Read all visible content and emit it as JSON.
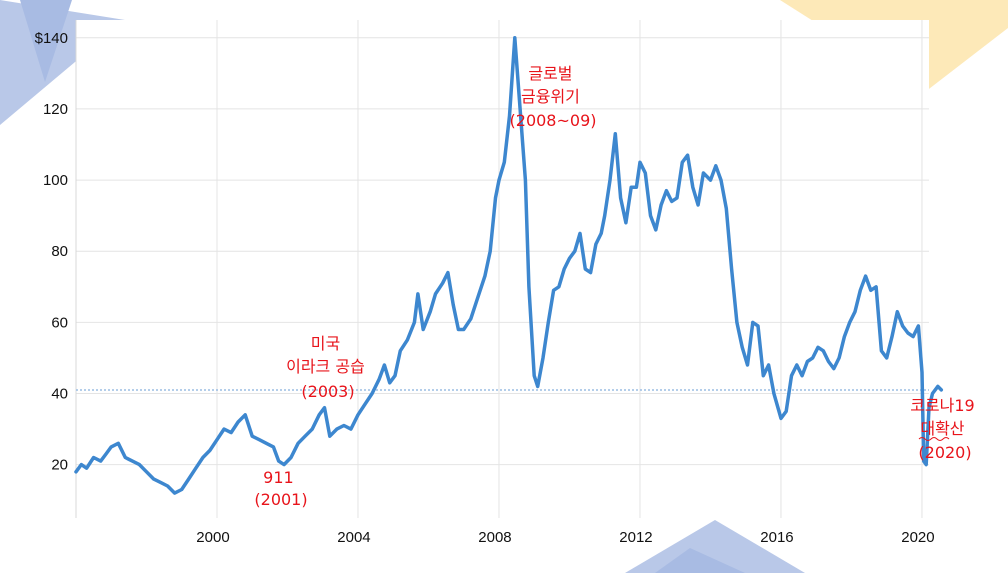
{
  "colors": {
    "line": "#3d87cf",
    "grid": "#e4e4e4",
    "reference_line": "#9bbde4",
    "annotation": "#e8141b",
    "decor_blue": "#b9c8e8",
    "decor_yellow": "#fde9b8"
  },
  "chart_data": {
    "type": "line",
    "title": "",
    "xlabel": "",
    "ylabel": "",
    "xlim": [
      1996.0,
      2020.2
    ],
    "ylim": [
      5,
      145
    ],
    "y_tick_labels": [
      "$140",
      "120",
      "100",
      "80",
      "60",
      "40",
      "20"
    ],
    "y_ticks": [
      140,
      120,
      100,
      80,
      60,
      40,
      20
    ],
    "x_tick_labels": [
      "2000",
      "2004",
      "2008",
      "2012",
      "2016",
      "2020"
    ],
    "x_ticks": [
      2000,
      2004,
      2008,
      2012,
      2016,
      2020
    ],
    "grid": true,
    "reference_line_y": 41,
    "series": [
      {
        "name": "",
        "points": [
          [
            1996.0,
            18
          ],
          [
            1996.15,
            20
          ],
          [
            1996.3,
            19
          ],
          [
            1996.5,
            22
          ],
          [
            1996.7,
            21
          ],
          [
            1996.85,
            23
          ],
          [
            1997.0,
            25
          ],
          [
            1997.2,
            26
          ],
          [
            1997.4,
            22
          ],
          [
            1997.6,
            21
          ],
          [
            1997.8,
            20
          ],
          [
            1998.0,
            18
          ],
          [
            1998.2,
            16
          ],
          [
            1998.4,
            15
          ],
          [
            1998.6,
            14
          ],
          [
            1998.8,
            12
          ],
          [
            1999.0,
            13
          ],
          [
            1999.2,
            16
          ],
          [
            1999.4,
            19
          ],
          [
            1999.6,
            22
          ],
          [
            1999.8,
            24
          ],
          [
            2000.0,
            27
          ],
          [
            2000.2,
            30
          ],
          [
            2000.4,
            29
          ],
          [
            2000.6,
            32
          ],
          [
            2000.8,
            34
          ],
          [
            2001.0,
            28
          ],
          [
            2001.2,
            27
          ],
          [
            2001.4,
            26
          ],
          [
            2001.6,
            25
          ],
          [
            2001.75,
            21
          ],
          [
            2001.9,
            20
          ],
          [
            2002.1,
            22
          ],
          [
            2002.3,
            26
          ],
          [
            2002.5,
            28
          ],
          [
            2002.7,
            30
          ],
          [
            2002.9,
            34
          ],
          [
            2003.05,
            36
          ],
          [
            2003.2,
            28
          ],
          [
            2003.4,
            30
          ],
          [
            2003.6,
            31
          ],
          [
            2003.8,
            30
          ],
          [
            2004.0,
            34
          ],
          [
            2004.2,
            37
          ],
          [
            2004.4,
            40
          ],
          [
            2004.6,
            44
          ],
          [
            2004.75,
            48
          ],
          [
            2004.9,
            43
          ],
          [
            2005.05,
            45
          ],
          [
            2005.2,
            52
          ],
          [
            2005.4,
            55
          ],
          [
            2005.6,
            60
          ],
          [
            2005.7,
            68
          ],
          [
            2005.85,
            58
          ],
          [
            2006.05,
            63
          ],
          [
            2006.2,
            68
          ],
          [
            2006.4,
            71
          ],
          [
            2006.55,
            74
          ],
          [
            2006.7,
            65
          ],
          [
            2006.85,
            58
          ],
          [
            2007.0,
            58
          ],
          [
            2007.2,
            61
          ],
          [
            2007.4,
            67
          ],
          [
            2007.6,
            73
          ],
          [
            2007.75,
            80
          ],
          [
            2007.9,
            95
          ],
          [
            2008.0,
            100
          ],
          [
            2008.15,
            105
          ],
          [
            2008.3,
            118
          ],
          [
            2008.45,
            140
          ],
          [
            2008.6,
            120
          ],
          [
            2008.75,
            100
          ],
          [
            2008.85,
            70
          ],
          [
            2009.0,
            45
          ],
          [
            2009.1,
            42
          ],
          [
            2009.25,
            50
          ],
          [
            2009.4,
            60
          ],
          [
            2009.55,
            69
          ],
          [
            2009.7,
            70
          ],
          [
            2009.85,
            75
          ],
          [
            2010.0,
            78
          ],
          [
            2010.15,
            80
          ],
          [
            2010.3,
            85
          ],
          [
            2010.45,
            75
          ],
          [
            2010.6,
            74
          ],
          [
            2010.75,
            82
          ],
          [
            2010.9,
            85
          ],
          [
            2011.0,
            90
          ],
          [
            2011.15,
            100
          ],
          [
            2011.3,
            113
          ],
          [
            2011.45,
            95
          ],
          [
            2011.6,
            88
          ],
          [
            2011.75,
            98
          ],
          [
            2011.9,
            98
          ],
          [
            2012.0,
            105
          ],
          [
            2012.15,
            102
          ],
          [
            2012.3,
            90
          ],
          [
            2012.45,
            86
          ],
          [
            2012.6,
            93
          ],
          [
            2012.75,
            97
          ],
          [
            2012.9,
            94
          ],
          [
            2013.05,
            95
          ],
          [
            2013.2,
            105
          ],
          [
            2013.35,
            107
          ],
          [
            2013.5,
            98
          ],
          [
            2013.65,
            93
          ],
          [
            2013.8,
            102
          ],
          [
            2014.0,
            100
          ],
          [
            2014.15,
            104
          ],
          [
            2014.3,
            100
          ],
          [
            2014.45,
            92
          ],
          [
            2014.6,
            75
          ],
          [
            2014.75,
            60
          ],
          [
            2014.9,
            53
          ],
          [
            2015.05,
            48
          ],
          [
            2015.2,
            60
          ],
          [
            2015.35,
            59
          ],
          [
            2015.5,
            45
          ],
          [
            2015.65,
            48
          ],
          [
            2015.8,
            40
          ],
          [
            2016.0,
            33
          ],
          [
            2016.15,
            35
          ],
          [
            2016.3,
            45
          ],
          [
            2016.45,
            48
          ],
          [
            2016.6,
            45
          ],
          [
            2016.75,
            49
          ],
          [
            2016.9,
            50
          ],
          [
            2017.05,
            53
          ],
          [
            2017.2,
            52
          ],
          [
            2017.35,
            49
          ],
          [
            2017.5,
            47
          ],
          [
            2017.65,
            50
          ],
          [
            2017.8,
            56
          ],
          [
            2017.95,
            60
          ],
          [
            2018.1,
            63
          ],
          [
            2018.25,
            69
          ],
          [
            2018.4,
            73
          ],
          [
            2018.55,
            69
          ],
          [
            2018.7,
            70
          ],
          [
            2018.85,
            52
          ],
          [
            2019.0,
            50
          ],
          [
            2019.15,
            56
          ],
          [
            2019.3,
            63
          ],
          [
            2019.45,
            59
          ],
          [
            2019.6,
            57
          ],
          [
            2019.75,
            56
          ],
          [
            2019.9,
            59
          ],
          [
            2020.0,
            46
          ],
          [
            2020.05,
            21
          ],
          [
            2020.12,
            20
          ],
          [
            2020.2,
            36
          ],
          [
            2020.3,
            40
          ],
          [
            2020.45,
            42
          ],
          [
            2020.55,
            41
          ]
        ]
      }
    ],
    "annotations": [
      {
        "lines": [
          "911",
          "(2001)"
        ]
      },
      {
        "lines": [
          "미국",
          "이라크 공습",
          "(2003)"
        ]
      },
      {
        "lines": [
          "글로벌",
          "금융위기",
          "(2008~09)"
        ]
      },
      {
        "lines": [
          "코로나19",
          "대확산",
          "(2020)"
        ]
      }
    ]
  }
}
